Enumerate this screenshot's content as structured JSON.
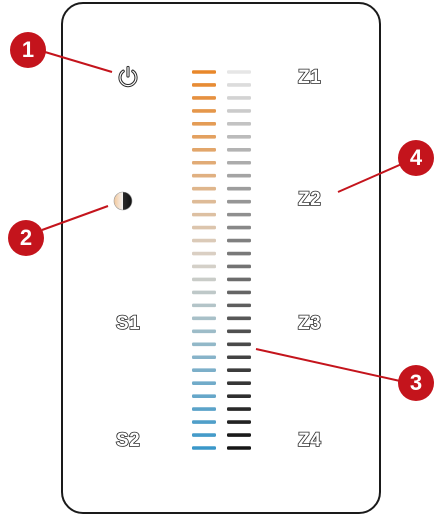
{
  "panel": {
    "keys": {
      "z1": "Z1",
      "z2": "Z2",
      "z3": "Z3",
      "z4": "Z4",
      "s1": "S1",
      "s2": "S2"
    },
    "icons": {
      "power": "power-icon",
      "color_temp": "color-temperature-icon"
    },
    "slider": {
      "segments": 30,
      "left_strip": "color-temperature-slider",
      "right_strip": "brightness-slider",
      "warm_color": "#e8872a",
      "neutral_color": "#d9d2c8",
      "cool_color": "#3a97c9",
      "light_gray": "#e6e6e6",
      "dark_gray": "#151515"
    }
  },
  "callouts": {
    "m1": "1",
    "m2": "2",
    "m3": "3",
    "m4": "4",
    "color": "#c4141c"
  }
}
